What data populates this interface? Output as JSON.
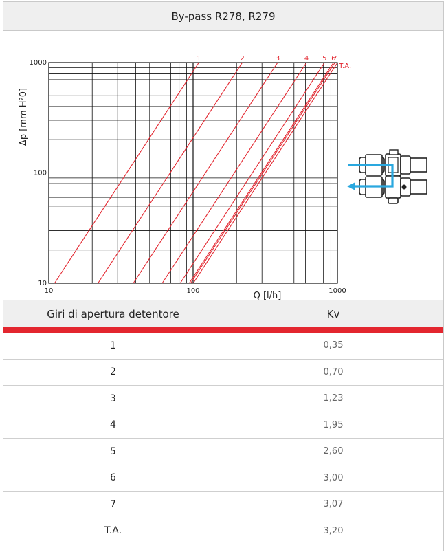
{
  "header": {
    "title": "By-pass R278, R279"
  },
  "chart_data": {
    "type": "line",
    "xlabel": "Q [l/h]",
    "ylabel": "Δp [mm H²0]",
    "x_scale": "log",
    "y_scale": "log",
    "xlim": [
      10,
      1000
    ],
    "ylim": [
      10,
      1000
    ],
    "x_ticks": [
      "10",
      "100",
      "1000"
    ],
    "y_ticks": [
      "10",
      "100",
      "1000"
    ],
    "grid": true,
    "series": [
      {
        "name": "1",
        "kv": 0.35,
        "color": "#e3262f"
      },
      {
        "name": "2",
        "kv": 0.7,
        "color": "#e3262f"
      },
      {
        "name": "3",
        "kv": 1.23,
        "color": "#e3262f"
      },
      {
        "name": "4",
        "kv": 1.95,
        "color": "#e3262f"
      },
      {
        "name": "5",
        "kv": 2.6,
        "color": "#e3262f"
      },
      {
        "name": "6",
        "kv": 3.0,
        "color": "#e3262f"
      },
      {
        "name": "7",
        "kv": 3.07,
        "color": "#e3262f"
      },
      {
        "name": "T.A.",
        "kv": 3.2,
        "color": "#e3262f"
      }
    ]
  },
  "illustration": {
    "icon": "bypass-valve-icon",
    "flow_color": "#2aa8df"
  },
  "table": {
    "headers": [
      "Giri di apertura detentore",
      "Kv"
    ],
    "accent": "#e3262f",
    "rows": [
      {
        "turns": "1",
        "kv": "0,35"
      },
      {
        "turns": "2",
        "kv": "0,70"
      },
      {
        "turns": "3",
        "kv": "1,23"
      },
      {
        "turns": "4",
        "kv": "1,95"
      },
      {
        "turns": "5",
        "kv": "2,60"
      },
      {
        "turns": "6",
        "kv": "3,00"
      },
      {
        "turns": "7",
        "kv": "3,07"
      },
      {
        "turns": "T.A.",
        "kv": "3,20"
      }
    ]
  }
}
